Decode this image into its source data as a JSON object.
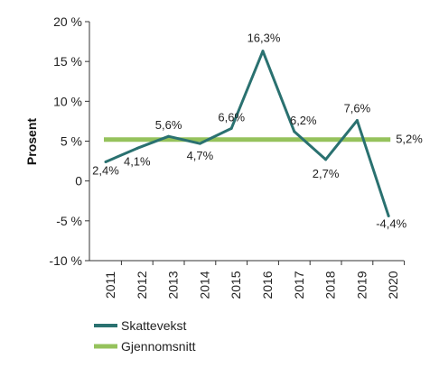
{
  "chart_data": {
    "type": "line",
    "title": "",
    "xlabel": "",
    "ylabel": "Prosent",
    "x": [
      "2011",
      "2012",
      "2013",
      "2014",
      "2015",
      "2016",
      "2017",
      "2018",
      "2019",
      "2020"
    ],
    "ylim": [
      -10,
      20
    ],
    "yticks": [
      20,
      15,
      10,
      5,
      0,
      -5,
      -10
    ],
    "ytick_labels": [
      "20 %",
      "15 %",
      "10 %",
      "5 %",
      "0",
      "-5 %",
      "-10 %"
    ],
    "grid": false,
    "legend_position": "bottom-left",
    "series": [
      {
        "name": "Skattevekst",
        "color": "#2a7170",
        "values": [
          2.4,
          4.1,
          5.6,
          4.7,
          6.6,
          16.3,
          6.2,
          2.7,
          7.6,
          -4.4
        ],
        "data_labels": [
          "2,4%",
          "4,1%",
          "5,6%",
          "4,7%",
          "6,6%",
          "16,3%",
          "6,2%",
          "2,7%",
          "7,6%",
          "-4,4%"
        ]
      },
      {
        "name": "Gjennomsnitt",
        "color": "#95c25c",
        "values": [
          5.2,
          5.2,
          5.2,
          5.2,
          5.2,
          5.2,
          5.2,
          5.2,
          5.2,
          5.2
        ],
        "data_labels": [
          "5,2%"
        ]
      }
    ]
  }
}
